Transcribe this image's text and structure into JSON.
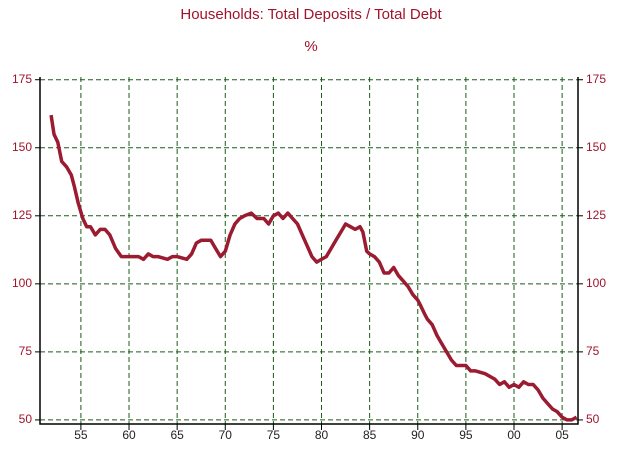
{
  "chart_data": {
    "type": "line",
    "title": "Households: Total Deposits / Total Debt",
    "subtitle": "%",
    "x": [
      1951.9,
      1952.2,
      1952.6,
      1953,
      1953.5,
      1954,
      1954.3,
      1954.7,
      1955.2,
      1955.6,
      1956,
      1956.5,
      1957,
      1957.5,
      1958,
      1958.6,
      1959.2,
      1960,
      1961,
      1961.5,
      1962,
      1962.5,
      1963,
      1964,
      1964.5,
      1965,
      1966,
      1966.5,
      1967,
      1967.5,
      1968,
      1968.5,
      1969,
      1969.5,
      1970,
      1970.5,
      1971,
      1971.5,
      1972,
      1972.7,
      1973.3,
      1974,
      1974.5,
      1975,
      1975.5,
      1976,
      1976.5,
      1977,
      1977.5,
      1978,
      1978.5,
      1979,
      1979.5,
      1980,
      1980.5,
      1981,
      1981.5,
      1982,
      1982.5,
      1983,
      1983.5,
      1984,
      1984.3,
      1984.7,
      1985,
      1985.5,
      1986,
      1986.5,
      1987,
      1987.5,
      1988,
      1988.5,
      1989,
      1989.5,
      1990,
      1990.3,
      1990.7,
      1991,
      1991.5,
      1992,
      1992.5,
      1993,
      1993.5,
      1994,
      1995,
      1995.5,
      1996,
      1997,
      1998,
      1998.5,
      1999,
      1999.5,
      2000,
      2000.5,
      2001,
      2001.5,
      2002,
      2002.5,
      2003,
      2003.5,
      2004,
      2004.5,
      2005,
      2005.5,
      2006,
      2006.5
    ],
    "series": [
      {
        "name": "Total Deposits / Total Debt",
        "color": "#9b1b30",
        "values": [
          162,
          155,
          152,
          145,
          143,
          140,
          136,
          130,
          124,
          121,
          121,
          118,
          120,
          120,
          118,
          113,
          110,
          110,
          110,
          109,
          111,
          110,
          110,
          109,
          110,
          110,
          109,
          111,
          115,
          116,
          116,
          116,
          113,
          110,
          112,
          118,
          122,
          124,
          125,
          126,
          124,
          124,
          122,
          125,
          126,
          124,
          126,
          124,
          122,
          118,
          114,
          110,
          108,
          109,
          110,
          113,
          116,
          119,
          122,
          121,
          120,
          121,
          119,
          112,
          111,
          110,
          108,
          104,
          104,
          106,
          103,
          101,
          99,
          96,
          94,
          92,
          89,
          87,
          85,
          81,
          78,
          75,
          72,
          70,
          70,
          68,
          68,
          67,
          65,
          63,
          64,
          62,
          63,
          62,
          64,
          63,
          63,
          61,
          58,
          56,
          54,
          53,
          51,
          50,
          50,
          51
        ]
      }
    ],
    "xlim": [
      1950.75,
      2006.65
    ],
    "xticks": [
      {
        "value": 1955,
        "label": "55"
      },
      {
        "value": 1960,
        "label": "60"
      },
      {
        "value": 1965,
        "label": "65"
      },
      {
        "value": 1970,
        "label": "70"
      },
      {
        "value": 1975,
        "label": "75"
      },
      {
        "value": 1980,
        "label": "80"
      },
      {
        "value": 1985,
        "label": "85"
      },
      {
        "value": 1990,
        "label": "90"
      },
      {
        "value": 1995,
        "label": "95"
      },
      {
        "value": 2000,
        "label": "00"
      },
      {
        "value": 2005,
        "label": "05"
      }
    ],
    "ylim": [
      48.5,
      176
    ],
    "yticks": [
      50,
      75,
      100,
      125,
      150,
      175
    ],
    "grid": true
  }
}
